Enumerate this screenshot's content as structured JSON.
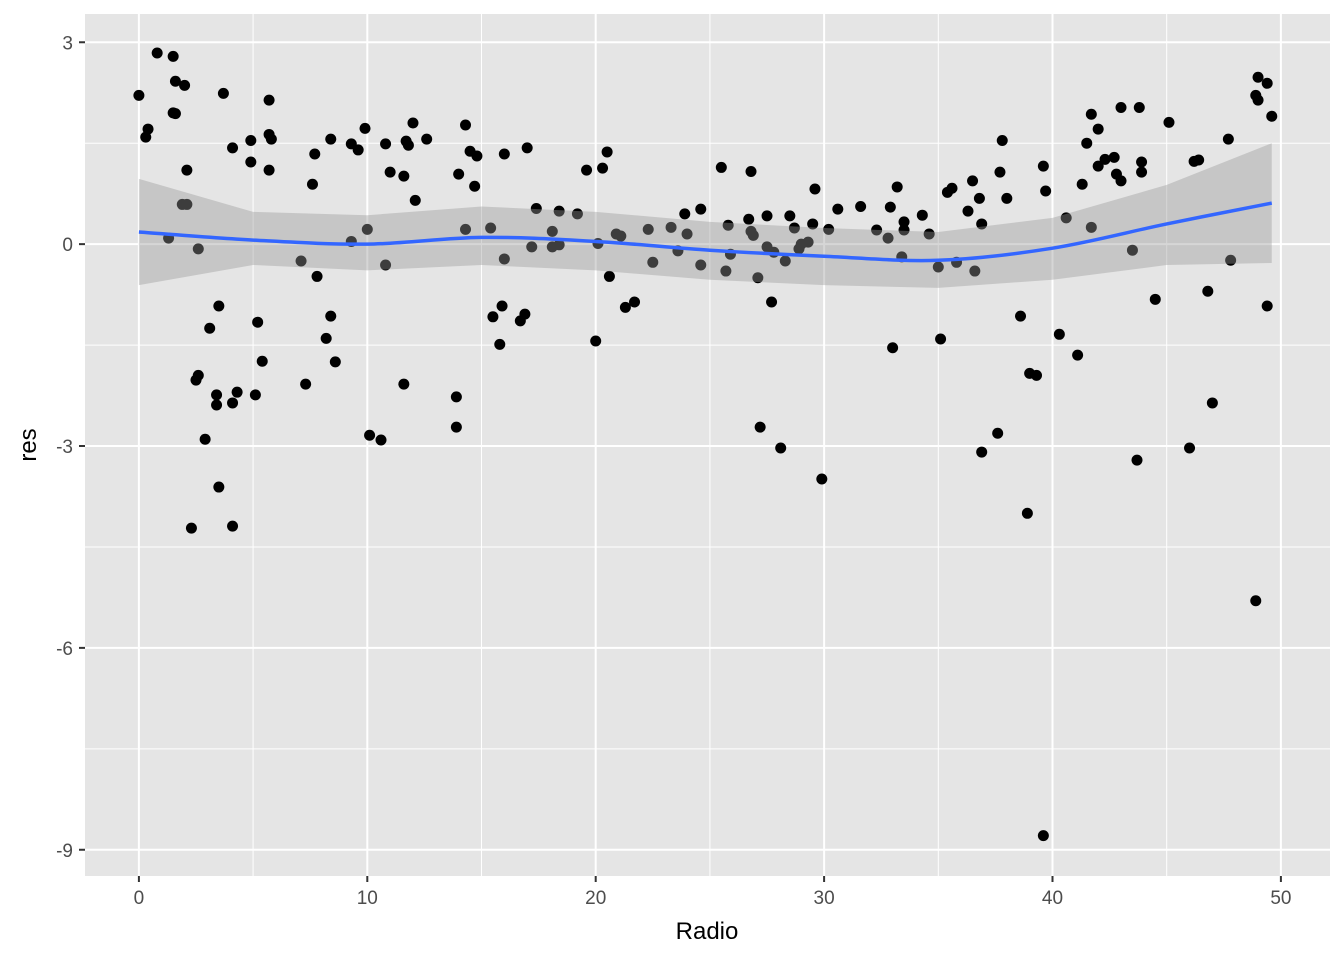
{
  "chart_data": {
    "type": "scatter",
    "title": "",
    "xlabel": "Radio",
    "ylabel": "res",
    "xlim": [
      -2.36,
      52.15
    ],
    "ylim": [
      -9.39,
      3.42
    ],
    "x_ticks": [
      0,
      10,
      20,
      30,
      40,
      50
    ],
    "y_ticks": [
      -9,
      -6,
      -3,
      0,
      3
    ],
    "x_tick_labels": [
      "0",
      "10",
      "20",
      "30",
      "40",
      "50"
    ],
    "y_tick_labels": [
      "-9",
      "-6",
      "-3",
      "0",
      "3"
    ],
    "grid": true,
    "legend": "none",
    "colors": {
      "panel": "#e5e5e5",
      "grid": "#ffffff",
      "point": "#000000",
      "smooth": "#3366ff",
      "ribbon": "#999999"
    },
    "points": [
      [
        0,
        2.21
      ],
      [
        0.3,
        1.59
      ],
      [
        0.4,
        1.71
      ],
      [
        0.8,
        2.84
      ],
      [
        1.3,
        0.09
      ],
      [
        1.5,
        1.95
      ],
      [
        1.5,
        2.79
      ],
      [
        1.6,
        2.42
      ],
      [
        1.6,
        1.94
      ],
      [
        2.0,
        2.36
      ],
      [
        1.9,
        0.59
      ],
      [
        2.1,
        0.59
      ],
      [
        2.1,
        1.1
      ],
      [
        2.3,
        -4.22
      ],
      [
        2.5,
        -2.02
      ],
      [
        2.6,
        -1.95
      ],
      [
        2.6,
        -0.07
      ],
      [
        2.9,
        -2.9
      ],
      [
        3.1,
        -1.25
      ],
      [
        3.4,
        -2.24
      ],
      [
        3.4,
        -2.39
      ],
      [
        3.5,
        -0.92
      ],
      [
        3.5,
        -3.61
      ],
      [
        3.7,
        2.24
      ],
      [
        4.1,
        1.43
      ],
      [
        4.1,
        -2.36
      ],
      [
        4.1,
        -4.19
      ],
      [
        4.3,
        -2.2
      ],
      [
        4.9,
        1.54
      ],
      [
        4.9,
        1.22
      ],
      [
        5.1,
        -2.24
      ],
      [
        5.2,
        -1.16
      ],
      [
        5.4,
        -1.74
      ],
      [
        5.7,
        2.14
      ],
      [
        5.7,
        1.63
      ],
      [
        5.8,
        1.56
      ],
      [
        5.7,
        1.1
      ],
      [
        7.1,
        -0.25
      ],
      [
        7.3,
        -2.08
      ],
      [
        7.6,
        0.89
      ],
      [
        7.7,
        1.34
      ],
      [
        7.8,
        -0.48
      ],
      [
        8.2,
        -1.4
      ],
      [
        8.4,
        1.56
      ],
      [
        8.4,
        -1.07
      ],
      [
        8.6,
        -1.75
      ],
      [
        9.3,
        1.49
      ],
      [
        9.3,
        0.04
      ],
      [
        9.6,
        1.4
      ],
      [
        9.9,
        1.72
      ],
      [
        10.0,
        0.22
      ],
      [
        10.1,
        -2.84
      ],
      [
        10.6,
        -2.91
      ],
      [
        10.8,
        1.49
      ],
      [
        10.8,
        -0.31
      ],
      [
        11.0,
        1.07
      ],
      [
        11.6,
        1.01
      ],
      [
        11.6,
        -2.08
      ],
      [
        11.7,
        1.53
      ],
      [
        11.8,
        1.47
      ],
      [
        12.0,
        1.8
      ],
      [
        12.1,
        0.65
      ],
      [
        12.6,
        1.56
      ],
      [
        13.9,
        -2.27
      ],
      [
        13.9,
        -2.72
      ],
      [
        14.0,
        1.04
      ],
      [
        14.3,
        0.22
      ],
      [
        14.3,
        1.77
      ],
      [
        14.5,
        1.38
      ],
      [
        14.7,
        0.86
      ],
      [
        14.8,
        1.31
      ],
      [
        15.4,
        0.24
      ],
      [
        15.5,
        -1.08
      ],
      [
        15.8,
        -1.49
      ],
      [
        15.9,
        -0.92
      ],
      [
        16.0,
        -0.22
      ],
      [
        16.0,
        1.34
      ],
      [
        16.7,
        -1.14
      ],
      [
        16.9,
        -1.04
      ],
      [
        17.0,
        1.43
      ],
      [
        17.2,
        -0.04
      ],
      [
        17.4,
        0.53
      ],
      [
        18.1,
        0.19
      ],
      [
        18.1,
        -0.04
      ],
      [
        18.4,
        -0.01
      ],
      [
        18.4,
        0.49
      ],
      [
        19.2,
        0.45
      ],
      [
        19.6,
        1.1
      ],
      [
        20.0,
        -1.44
      ],
      [
        20.1,
        0.01
      ],
      [
        20.3,
        1.13
      ],
      [
        20.5,
        1.37
      ],
      [
        20.6,
        -0.48
      ],
      [
        20.9,
        0.15
      ],
      [
        21.1,
        0.12
      ],
      [
        21.3,
        -0.94
      ],
      [
        21.7,
        -0.86
      ],
      [
        22.3,
        0.22
      ],
      [
        22.5,
        -0.27
      ],
      [
        23.3,
        0.25
      ],
      [
        23.6,
        -0.1
      ],
      [
        23.9,
        0.45
      ],
      [
        24.0,
        0.15
      ],
      [
        24.6,
        -0.31
      ],
      [
        24.6,
        0.52
      ],
      [
        25.5,
        1.14
      ],
      [
        25.7,
        -0.4
      ],
      [
        25.8,
        0.28
      ],
      [
        25.9,
        -0.15
      ],
      [
        26.7,
        0.37
      ],
      [
        26.8,
        0.19
      ],
      [
        26.8,
        1.08
      ],
      [
        26.9,
        0.13
      ],
      [
        27.1,
        -0.5
      ],
      [
        27.2,
        -2.72
      ],
      [
        27.5,
        0.42
      ],
      [
        27.5,
        -0.04
      ],
      [
        27.7,
        -0.86
      ],
      [
        27.8,
        -0.12
      ],
      [
        28.1,
        -3.03
      ],
      [
        28.3,
        -0.25
      ],
      [
        28.5,
        0.42
      ],
      [
        28.7,
        0.24
      ],
      [
        28.9,
        -0.07
      ],
      [
        29.0,
        0.0
      ],
      [
        29.3,
        0.03
      ],
      [
        29.5,
        0.3
      ],
      [
        29.6,
        0.82
      ],
      [
        29.9,
        -3.49
      ],
      [
        30.2,
        0.22
      ],
      [
        30.6,
        0.52
      ],
      [
        31.6,
        0.56
      ],
      [
        32.3,
        0.21
      ],
      [
        32.8,
        0.09
      ],
      [
        32.9,
        0.55
      ],
      [
        33.0,
        -1.54
      ],
      [
        33.2,
        0.85
      ],
      [
        33.4,
        -0.19
      ],
      [
        33.5,
        0.21
      ],
      [
        33.5,
        0.33
      ],
      [
        34.3,
        0.43
      ],
      [
        34.6,
        0.15
      ],
      [
        35.0,
        -0.34
      ],
      [
        35.1,
        -1.41
      ],
      [
        35.4,
        0.77
      ],
      [
        35.6,
        0.83
      ],
      [
        35.8,
        -0.27
      ],
      [
        36.3,
        0.49
      ],
      [
        36.5,
        0.94
      ],
      [
        36.6,
        -0.4
      ],
      [
        36.8,
        0.68
      ],
      [
        36.9,
        0.3
      ],
      [
        36.9,
        -3.09
      ],
      [
        37.6,
        -2.81
      ],
      [
        37.7,
        1.07
      ],
      [
        37.8,
        1.54
      ],
      [
        38.0,
        0.68
      ],
      [
        38.6,
        -1.07
      ],
      [
        38.9,
        -4.0
      ],
      [
        39.0,
        -1.92
      ],
      [
        39.3,
        -1.95
      ],
      [
        39.6,
        1.16
      ],
      [
        39.6,
        -8.79
      ],
      [
        39.7,
        0.79
      ],
      [
        40.3,
        -1.34
      ],
      [
        40.6,
        0.39
      ],
      [
        41.1,
        -1.65
      ],
      [
        41.3,
        0.89
      ],
      [
        41.5,
        1.5
      ],
      [
        41.7,
        1.93
      ],
      [
        41.7,
        0.25
      ],
      [
        42.0,
        1.16
      ],
      [
        42.0,
        1.71
      ],
      [
        42.3,
        1.26
      ],
      [
        42.7,
        1.29
      ],
      [
        42.8,
        1.04
      ],
      [
        43.0,
        0.94
      ],
      [
        43.0,
        2.03
      ],
      [
        43.5,
        -0.09
      ],
      [
        43.7,
        -3.21
      ],
      [
        43.8,
        2.03
      ],
      [
        43.9,
        1.22
      ],
      [
        43.9,
        1.07
      ],
      [
        44.5,
        -0.82
      ],
      [
        45.1,
        1.81
      ],
      [
        46.0,
        -3.03
      ],
      [
        46.2,
        1.23
      ],
      [
        46.4,
        1.25
      ],
      [
        46.8,
        -0.7
      ],
      [
        47.0,
        -2.36
      ],
      [
        47.7,
        1.56
      ],
      [
        47.8,
        -0.24
      ],
      [
        48.9,
        -5.3
      ],
      [
        48.9,
        2.21
      ],
      [
        49.0,
        2.48
      ],
      [
        49.0,
        2.14
      ],
      [
        49.4,
        -0.92
      ],
      [
        49.4,
        2.39
      ],
      [
        49.6,
        1.9
      ]
    ],
    "smooth": {
      "method": "loess",
      "x": [
        0,
        5,
        10,
        15,
        20,
        25,
        30,
        35,
        40,
        45,
        49.6
      ],
      "y": [
        0.18,
        0.06,
        0.0,
        0.1,
        0.04,
        -0.09,
        -0.18,
        -0.24,
        -0.06,
        0.3,
        0.61
      ],
      "upper": [
        0.97,
        0.48,
        0.43,
        0.56,
        0.48,
        0.33,
        0.24,
        0.18,
        0.39,
        0.88,
        1.5
      ],
      "lower": [
        -0.61,
        -0.31,
        -0.39,
        -0.31,
        -0.39,
        -0.53,
        -0.61,
        -0.65,
        -0.53,
        -0.31,
        -0.28
      ]
    }
  }
}
